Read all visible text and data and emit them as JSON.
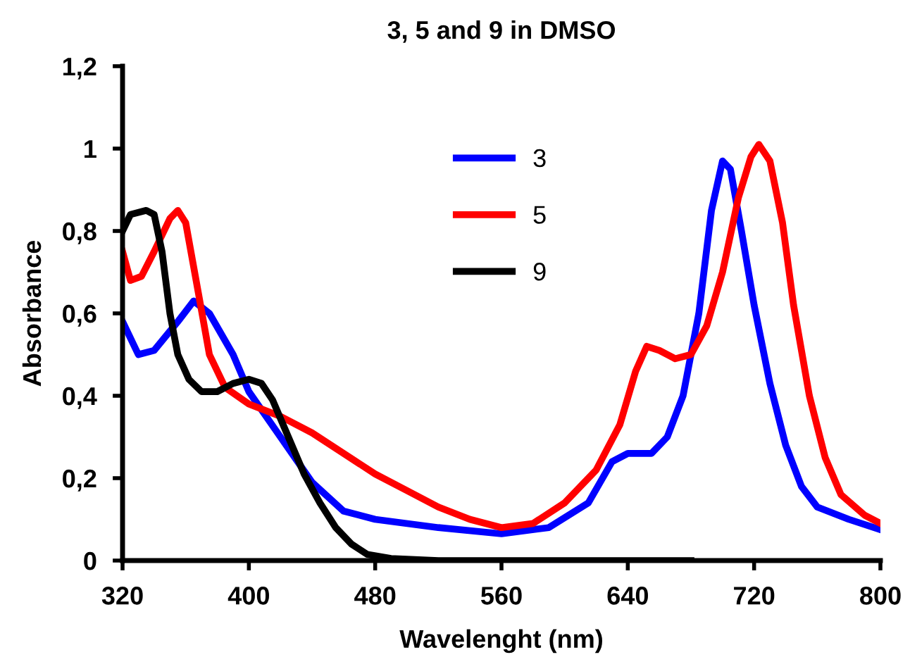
{
  "chart_data": {
    "type": "line",
    "title": "3, 5 and 9 in DMSO",
    "xlabel": "Wavelenght (nm)",
    "ylabel": "Absorbance",
    "xlim": [
      320,
      800
    ],
    "xticks": [
      320,
      400,
      480,
      560,
      640,
      720,
      800
    ],
    "ylim": [
      0,
      1.2
    ],
    "yticks": [
      0,
      {
        "value": 0.2,
        "label": "0,2"
      },
      {
        "value": 0.4,
        "label": "0,4"
      },
      {
        "value": 0.6,
        "label": "0,6"
      },
      {
        "value": 0.8,
        "label": "0,8"
      },
      1,
      {
        "value": 1.2,
        "label": "1,2"
      }
    ],
    "grid": false,
    "legend": "top",
    "marker": "none",
    "line_style": "solid",
    "series": [
      {
        "name": "3",
        "color": "#0000ff",
        "x": [
          320,
          330,
          340,
          355,
          365,
          375,
          390,
          400,
          420,
          440,
          460,
          480,
          520,
          560,
          590,
          615,
          630,
          640,
          655,
          665,
          675,
          685,
          693,
          700,
          705,
          712,
          720,
          730,
          740,
          750,
          760,
          780,
          800
        ],
        "values": [
          0.58,
          0.5,
          0.51,
          0.58,
          0.63,
          0.6,
          0.5,
          0.41,
          0.3,
          0.19,
          0.12,
          0.1,
          0.08,
          0.065,
          0.08,
          0.14,
          0.24,
          0.26,
          0.26,
          0.3,
          0.4,
          0.6,
          0.85,
          0.97,
          0.95,
          0.8,
          0.62,
          0.43,
          0.28,
          0.18,
          0.13,
          0.1,
          0.075
        ]
      },
      {
        "name": "5",
        "color": "#ff0000",
        "x": [
          320,
          325,
          332,
          340,
          350,
          355,
          360,
          368,
          375,
          385,
          400,
          420,
          440,
          460,
          480,
          500,
          520,
          540,
          560,
          580,
          600,
          620,
          635,
          645,
          652,
          660,
          670,
          680,
          690,
          700,
          710,
          718,
          723,
          730,
          738,
          745,
          755,
          765,
          775,
          790,
          800
        ],
        "values": [
          0.75,
          0.68,
          0.69,
          0.75,
          0.83,
          0.85,
          0.82,
          0.65,
          0.5,
          0.42,
          0.38,
          0.35,
          0.31,
          0.26,
          0.21,
          0.17,
          0.13,
          0.1,
          0.08,
          0.09,
          0.14,
          0.22,
          0.33,
          0.46,
          0.52,
          0.51,
          0.49,
          0.5,
          0.57,
          0.7,
          0.88,
          0.98,
          1.01,
          0.97,
          0.82,
          0.62,
          0.4,
          0.25,
          0.16,
          0.11,
          0.09
        ]
      },
      {
        "name": "9",
        "color": "#000000",
        "x": [
          320,
          325,
          335,
          340,
          345,
          350,
          355,
          362,
          370,
          380,
          390,
          400,
          408,
          415,
          425,
          435,
          445,
          455,
          465,
          475,
          490,
          520,
          560,
          600,
          640,
          680
        ],
        "values": [
          0.8,
          0.84,
          0.85,
          0.84,
          0.75,
          0.6,
          0.5,
          0.44,
          0.41,
          0.41,
          0.43,
          0.44,
          0.43,
          0.39,
          0.3,
          0.21,
          0.14,
          0.08,
          0.04,
          0.015,
          0.005,
          0,
          0,
          0,
          0,
          0
        ]
      }
    ]
  }
}
